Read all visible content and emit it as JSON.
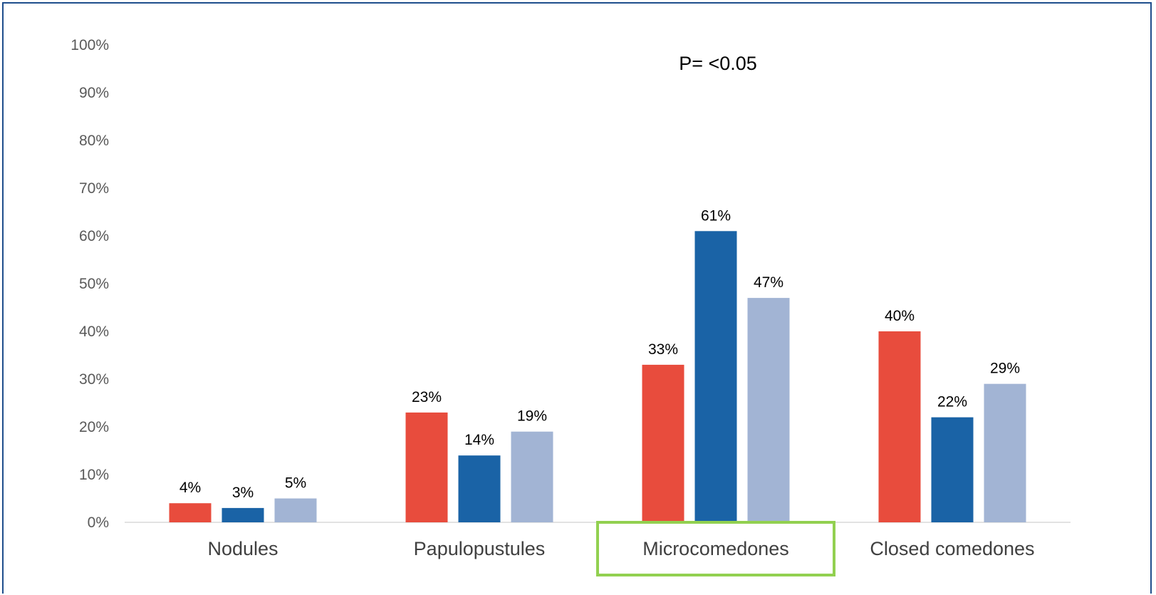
{
  "chart_data": {
    "type": "bar",
    "categories": [
      "Nodules",
      "Papulopustules",
      "Microcomedones",
      "Closed comedones"
    ],
    "series": [
      {
        "values": [
          4,
          23,
          33,
          40
        ],
        "labels": [
          "4%",
          "23%",
          "33%",
          "40%"
        ],
        "color": "#e84c3d"
      },
      {
        "values": [
          3,
          14,
          61,
          22
        ],
        "labels": [
          "3%",
          "14%",
          "61%",
          "22%"
        ],
        "color": "#1a63a6"
      },
      {
        "values": [
          5,
          19,
          47,
          29
        ],
        "labels": [
          "5%",
          "19%",
          "47%",
          "29%"
        ],
        "color": "#a2b4d4"
      }
    ],
    "ylim": [
      0,
      100
    ],
    "yticks": [
      0,
      10,
      20,
      30,
      40,
      50,
      60,
      70,
      80,
      90,
      100
    ],
    "ytick_labels": [
      "0%",
      "10%",
      "20%",
      "30%",
      "40%",
      "50%",
      "60%",
      "70%",
      "80%",
      "90%",
      "100%"
    ],
    "annotation": "P= <0.05",
    "highlighted_category": "Microcomedones",
    "highlight_color": "#92d050",
    "grid": false,
    "legend": "none"
  }
}
